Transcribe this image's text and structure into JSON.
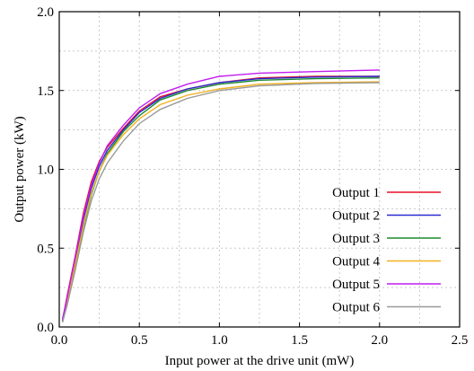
{
  "chart_data": {
    "type": "line",
    "title": "",
    "xlabel": "Input power at the drive unit (mW)",
    "ylabel": "Output power (kW)",
    "xlim": [
      0,
      2.5
    ],
    "ylim": [
      0,
      2.0
    ],
    "xticks": [
      0,
      0.5,
      1.0,
      1.5,
      2.0,
      2.5
    ],
    "yticks": [
      0,
      0.5,
      1.0,
      1.5,
      2.0
    ],
    "xtick_labels": [
      "0.0",
      "0.5",
      "1.0",
      "1.5",
      "2.0",
      "2.5"
    ],
    "ytick_labels": [
      "0.0",
      "0.5",
      "1.0",
      "1.5",
      "2.0"
    ],
    "grid": true,
    "legend_position": "bottom-right",
    "series": [
      {
        "name": "Output 1",
        "color": "#e8102a",
        "x": [
          0.02,
          0.05,
          0.1,
          0.15,
          0.2,
          0.25,
          0.3,
          0.4,
          0.5,
          0.63,
          0.8,
          1.0,
          1.25,
          1.6,
          2.0
        ],
        "y": [
          0.04,
          0.2,
          0.45,
          0.72,
          0.92,
          1.05,
          1.14,
          1.26,
          1.37,
          1.46,
          1.51,
          1.55,
          1.58,
          1.59,
          1.59
        ]
      },
      {
        "name": "Output 2",
        "color": "#2a2ad0",
        "x": [
          0.02,
          0.05,
          0.1,
          0.15,
          0.2,
          0.25,
          0.3,
          0.4,
          0.5,
          0.63,
          0.8,
          1.0,
          1.25,
          1.6,
          2.0
        ],
        "y": [
          0.05,
          0.18,
          0.42,
          0.68,
          0.88,
          1.02,
          1.12,
          1.25,
          1.36,
          1.45,
          1.51,
          1.55,
          1.575,
          1.585,
          1.59
        ]
      },
      {
        "name": "Output 3",
        "color": "#1e8a2e",
        "x": [
          0.02,
          0.05,
          0.1,
          0.15,
          0.2,
          0.25,
          0.3,
          0.4,
          0.5,
          0.63,
          0.8,
          1.0,
          1.25,
          1.6,
          2.0
        ],
        "y": [
          0.03,
          0.15,
          0.38,
          0.63,
          0.84,
          0.99,
          1.1,
          1.24,
          1.34,
          1.44,
          1.5,
          1.54,
          1.565,
          1.575,
          1.58
        ]
      },
      {
        "name": "Output 4",
        "color": "#f0b020",
        "x": [
          0.02,
          0.05,
          0.1,
          0.15,
          0.2,
          0.25,
          0.3,
          0.4,
          0.5,
          0.63,
          0.8,
          1.0,
          1.25,
          1.6,
          2.0
        ],
        "y": [
          0.04,
          0.17,
          0.4,
          0.64,
          0.85,
          0.99,
          1.09,
          1.22,
          1.32,
          1.41,
          1.47,
          1.51,
          1.54,
          1.55,
          1.555
        ]
      },
      {
        "name": "Output 5",
        "color": "#c21cf0",
        "x": [
          0.02,
          0.05,
          0.1,
          0.15,
          0.2,
          0.25,
          0.3,
          0.4,
          0.5,
          0.63,
          0.8,
          1.0,
          1.25,
          1.6,
          2.0
        ],
        "y": [
          0.04,
          0.19,
          0.44,
          0.7,
          0.9,
          1.04,
          1.15,
          1.28,
          1.39,
          1.48,
          1.54,
          1.59,
          1.61,
          1.62,
          1.63
        ]
      },
      {
        "name": "Output 6",
        "color": "#9a9a9a",
        "x": [
          0.02,
          0.05,
          0.1,
          0.15,
          0.2,
          0.25,
          0.3,
          0.4,
          0.5,
          0.63,
          0.8,
          1.0,
          1.25,
          1.6,
          2.0
        ],
        "y": [
          0.03,
          0.14,
          0.36,
          0.6,
          0.8,
          0.94,
          1.04,
          1.18,
          1.29,
          1.38,
          1.45,
          1.5,
          1.53,
          1.545,
          1.55
        ]
      }
    ]
  }
}
